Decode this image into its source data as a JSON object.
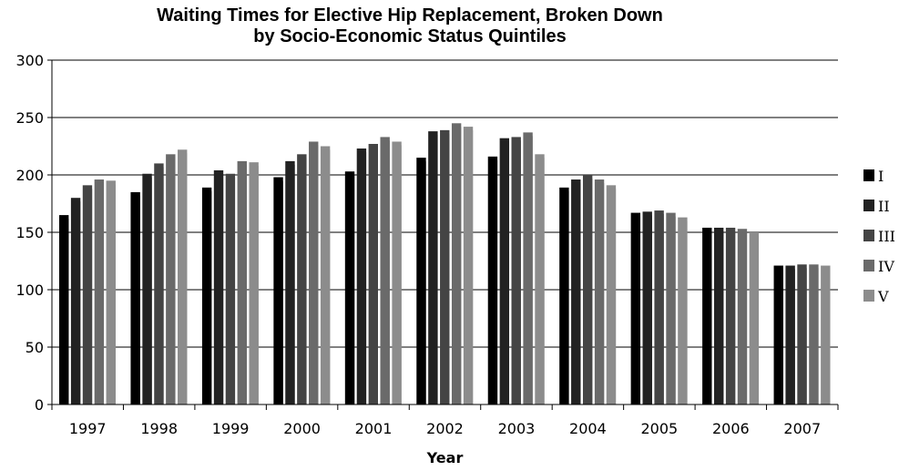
{
  "chart_data": {
    "type": "bar",
    "title_lines": [
      "Waiting Times for Elective Hip Replacement, Broken Down",
      "by Socio-Economic Status Quintiles"
    ],
    "xlabel": "Year",
    "ylabel": "",
    "ylim": [
      0,
      300
    ],
    "yticks": [
      0,
      50,
      100,
      150,
      200,
      250,
      300
    ],
    "grid": true,
    "legend_position": "right",
    "categories": [
      "1997",
      "1998",
      "1999",
      "2000",
      "2001",
      "2002",
      "2003",
      "2004",
      "2005",
      "2006",
      "2007"
    ],
    "series": [
      {
        "name": "I",
        "color": "#000000",
        "values": [
          165,
          185,
          189,
          198,
          203,
          215,
          216,
          189,
          167,
          154,
          121
        ]
      },
      {
        "name": "II",
        "color": "#222222",
        "values": [
          180,
          201,
          204,
          212,
          223,
          238,
          232,
          196,
          168,
          154,
          121
        ]
      },
      {
        "name": "III",
        "color": "#444444",
        "values": [
          191,
          210,
          201,
          218,
          227,
          239,
          233,
          200,
          169,
          154,
          122
        ]
      },
      {
        "name": "IV",
        "color": "#6a6a6a",
        "values": [
          196,
          218,
          212,
          229,
          233,
          245,
          237,
          196,
          167,
          153,
          122
        ]
      },
      {
        "name": "V",
        "color": "#8c8c8c",
        "values": [
          195,
          222,
          211,
          225,
          229,
          242,
          218,
          191,
          163,
          150,
          121
        ]
      }
    ]
  }
}
